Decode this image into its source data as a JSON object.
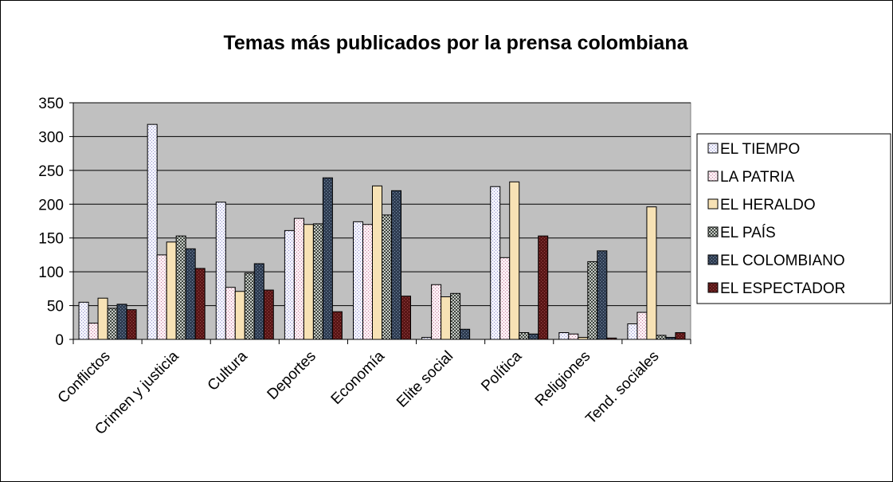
{
  "chart_data": {
    "type": "bar",
    "title": "Temas más publicados por la prensa colombiana",
    "xlabel": "",
    "ylabel": "",
    "ylim": [
      0,
      350
    ],
    "yticks": [
      "0",
      "50",
      "100",
      "150",
      "200",
      "250",
      "300",
      "350"
    ],
    "grid": true,
    "legend_position": "right",
    "categories": [
      "Conflictos",
      "Crimen y justicia",
      "Cultura",
      "Deportes",
      "Economía",
      "Elite social",
      "Política",
      "Religiones",
      "Tend. sociales"
    ],
    "series": [
      {
        "name": "EL TIEMPO",
        "color": "#e8e8f8",
        "pattern": "dots-blue",
        "values": [
          55,
          318,
          203,
          161,
          174,
          3,
          226,
          10,
          23
        ]
      },
      {
        "name": "LA PATRIA",
        "color": "#f4dde8",
        "pattern": "dots-pink",
        "values": [
          24,
          125,
          77,
          179,
          170,
          81,
          121,
          8,
          40
        ]
      },
      {
        "name": "EL HERALDO",
        "color": "#f7e2b5",
        "pattern": "solid",
        "values": [
          61,
          144,
          71,
          170,
          227,
          63,
          233,
          3,
          196
        ]
      },
      {
        "name": "EL PAÍS",
        "color": "#9aa39a",
        "pattern": "checker",
        "values": [
          46,
          153,
          98,
          171,
          184,
          68,
          10,
          115,
          6
        ]
      },
      {
        "name": "EL COLOMBIANO",
        "color": "#3b4a5e",
        "pattern": "dots-dark",
        "values": [
          52,
          134,
          112,
          239,
          220,
          15,
          8,
          131,
          3
        ]
      },
      {
        "name": "EL ESPECTADOR",
        "color": "#6b1f1f",
        "pattern": "dots-maroon",
        "values": [
          44,
          105,
          73,
          41,
          64,
          0,
          153,
          2,
          10
        ]
      }
    ]
  }
}
